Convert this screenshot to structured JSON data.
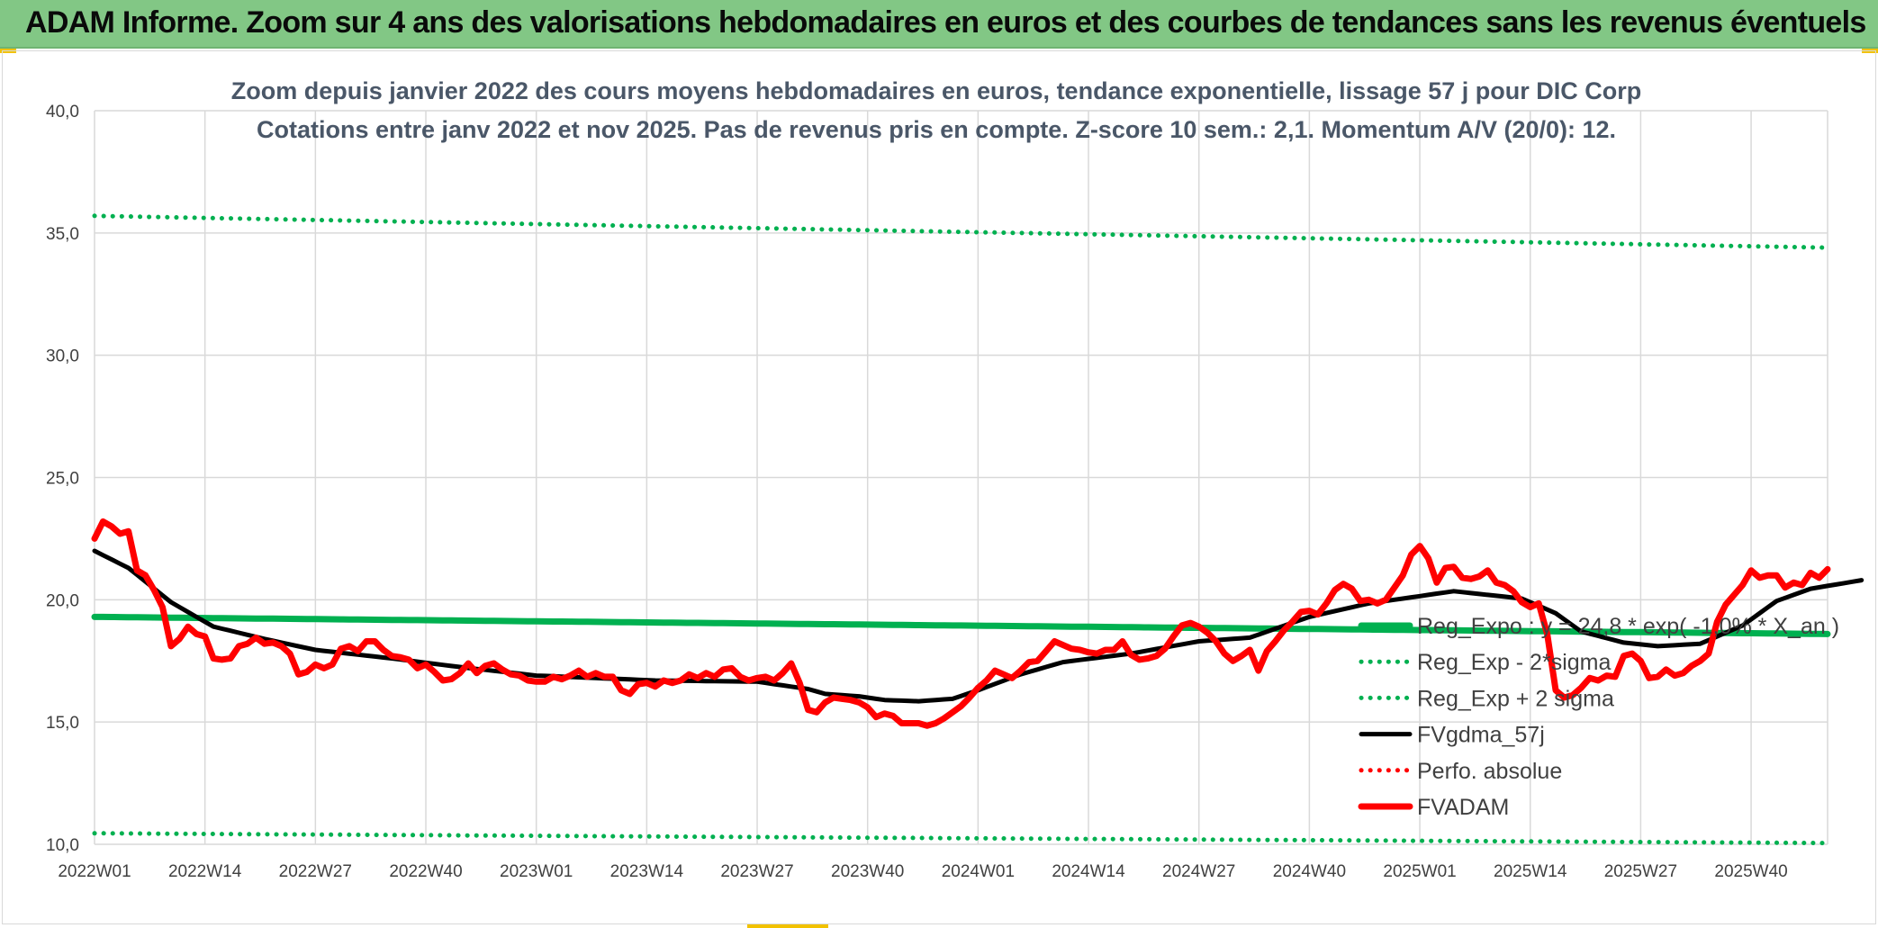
{
  "banner": {
    "title": "ADAM Informe. Zoom sur 4 ans des valorisations hebdomadaires en euros et des courbes de tendances sans les revenus éventuels"
  },
  "chart_data": {
    "type": "line",
    "title": "Zoom depuis janvier 2022 des cours moyens hebdomadaires en euros, tendance exponentielle, lissage 57 j pour DIC Corp",
    "subtitle": "Cotations entre janv 2022 et nov 2025. Pas de revenus pris en compte. Z-score 10 sem.: 2,1. Momentum A/V (20/0): 12.",
    "xlabel": "",
    "ylabel": "",
    "ylim": [
      10,
      40
    ],
    "yticks": [
      "10,0",
      "15,0",
      "20,0",
      "25,0",
      "30,0",
      "35,0",
      "40,0"
    ],
    "n_weeks": 203,
    "x_tick_labels": [
      "2022W01",
      "2022W14",
      "2022W27",
      "2022W40",
      "2023W01",
      "2023W14",
      "2023W27",
      "2023W40",
      "2024W01",
      "2024W14",
      "2024W27",
      "2024W40",
      "2025W01",
      "2025W14",
      "2025W27",
      "2025W40"
    ],
    "grid": true,
    "legend_position": "lower-right inside plot",
    "series": [
      {
        "name": "Reg_Expo : y = 24,8 * exp( -1,0% * X_an )",
        "style": "solid-thick",
        "color": "#00b050",
        "start": 19.3,
        "end": 18.6
      },
      {
        "name": "Reg_Exp - 2*sigma",
        "style": "dotted",
        "color": "#00b050",
        "start": 10.45,
        "end": 10.05
      },
      {
        "name": "Reg_Exp + 2 sigma",
        "style": "dotted",
        "color": "#00b050",
        "start": 35.7,
        "end": 34.4
      },
      {
        "name": "FVgdma_57j",
        "style": "solid",
        "color": "#000000",
        "keypoints": [
          [
            0,
            22.0
          ],
          [
            4,
            21.3
          ],
          [
            9,
            19.9
          ],
          [
            14,
            18.9
          ],
          [
            20,
            18.4
          ],
          [
            26,
            17.95
          ],
          [
            35,
            17.6
          ],
          [
            43,
            17.25
          ],
          [
            52,
            16.9
          ],
          [
            66,
            16.7
          ],
          [
            78,
            16.65
          ],
          [
            84,
            16.35
          ],
          [
            86,
            16.15
          ],
          [
            90,
            16.05
          ],
          [
            93,
            15.9
          ],
          [
            97,
            15.85
          ],
          [
            101,
            15.95
          ],
          [
            104,
            16.3
          ],
          [
            109,
            16.95
          ],
          [
            114,
            17.45
          ],
          [
            122,
            17.8
          ],
          [
            130,
            18.3
          ],
          [
            136,
            18.45
          ],
          [
            143,
            19.3
          ],
          [
            150,
            19.85
          ],
          [
            155,
            20.1
          ],
          [
            160,
            20.35
          ],
          [
            168,
            20.05
          ],
          [
            172,
            19.45
          ],
          [
            175,
            18.7
          ],
          [
            180,
            18.25
          ],
          [
            184,
            18.1
          ],
          [
            189,
            18.2
          ],
          [
            194,
            18.95
          ],
          [
            198,
            19.95
          ],
          [
            202,
            20.45
          ],
          [
            208,
            20.8
          ]
        ]
      },
      {
        "name": "Perfo. absolue",
        "style": "dotted",
        "color": "#ff0000",
        "values": []
      },
      {
        "name": "FVADAM",
        "style": "solid-thick",
        "color": "#ff0000",
        "keypoints": [
          [
            0,
            22.5
          ],
          [
            1,
            23.2
          ],
          [
            2,
            23.0
          ],
          [
            3,
            22.7
          ],
          [
            4,
            22.8
          ],
          [
            5,
            21.2
          ],
          [
            6,
            21.0
          ],
          [
            7,
            20.4
          ],
          [
            8,
            19.7
          ],
          [
            9,
            18.1
          ],
          [
            10,
            18.4
          ],
          [
            11,
            18.9
          ],
          [
            12,
            18.6
          ],
          [
            13,
            18.5
          ],
          [
            14,
            17.6
          ],
          [
            15,
            17.55
          ],
          [
            16,
            17.6
          ],
          [
            17,
            18.1
          ],
          [
            18,
            18.2
          ],
          [
            19,
            18.45
          ],
          [
            20,
            18.2
          ],
          [
            21,
            18.25
          ],
          [
            22,
            18.1
          ],
          [
            23,
            17.8
          ],
          [
            24,
            16.95
          ],
          [
            25,
            17.05
          ],
          [
            26,
            17.35
          ],
          [
            27,
            17.2
          ],
          [
            28,
            17.35
          ],
          [
            29,
            18.0
          ],
          [
            30,
            18.1
          ],
          [
            31,
            17.9
          ],
          [
            32,
            18.3
          ],
          [
            33,
            18.3
          ],
          [
            34,
            17.95
          ],
          [
            35,
            17.7
          ],
          [
            36,
            17.65
          ],
          [
            37,
            17.55
          ],
          [
            38,
            17.2
          ],
          [
            39,
            17.35
          ],
          [
            40,
            17.05
          ],
          [
            41,
            16.7
          ],
          [
            42,
            16.75
          ],
          [
            43,
            17.0
          ],
          [
            44,
            17.4
          ],
          [
            45,
            17.0
          ],
          [
            46,
            17.3
          ],
          [
            47,
            17.4
          ],
          [
            48,
            17.15
          ],
          [
            49,
            16.95
          ],
          [
            50,
            16.9
          ],
          [
            51,
            16.7
          ],
          [
            52,
            16.65
          ],
          [
            53,
            16.65
          ],
          [
            54,
            16.85
          ],
          [
            55,
            16.75
          ],
          [
            56,
            16.9
          ],
          [
            57,
            17.1
          ],
          [
            58,
            16.85
          ],
          [
            59,
            17.0
          ],
          [
            60,
            16.85
          ],
          [
            61,
            16.85
          ],
          [
            62,
            16.3
          ],
          [
            63,
            16.15
          ],
          [
            64,
            16.55
          ],
          [
            65,
            16.6
          ],
          [
            66,
            16.45
          ],
          [
            67,
            16.7
          ],
          [
            68,
            16.6
          ],
          [
            69,
            16.7
          ],
          [
            70,
            16.95
          ],
          [
            71,
            16.8
          ],
          [
            72,
            17.0
          ],
          [
            73,
            16.85
          ],
          [
            74,
            17.15
          ],
          [
            75,
            17.2
          ],
          [
            76,
            16.85
          ],
          [
            77,
            16.7
          ],
          [
            78,
            16.8
          ],
          [
            79,
            16.85
          ],
          [
            80,
            16.7
          ],
          [
            81,
            17.0
          ],
          [
            82,
            17.4
          ],
          [
            83,
            16.6
          ],
          [
            84,
            15.5
          ],
          [
            85,
            15.4
          ],
          [
            86,
            15.8
          ],
          [
            87,
            16.0
          ],
          [
            88,
            15.95
          ],
          [
            89,
            15.9
          ],
          [
            90,
            15.8
          ],
          [
            91,
            15.6
          ],
          [
            92,
            15.2
          ],
          [
            93,
            15.35
          ],
          [
            94,
            15.25
          ],
          [
            95,
            14.95
          ],
          [
            96,
            14.95
          ],
          [
            97,
            14.95
          ],
          [
            98,
            14.85
          ],
          [
            99,
            14.95
          ],
          [
            100,
            15.15
          ],
          [
            101,
            15.4
          ],
          [
            102,
            15.65
          ],
          [
            103,
            16.0
          ],
          [
            104,
            16.4
          ],
          [
            105,
            16.7
          ],
          [
            106,
            17.1
          ],
          [
            107,
            16.95
          ],
          [
            108,
            16.8
          ],
          [
            109,
            17.1
          ],
          [
            110,
            17.45
          ],
          [
            111,
            17.5
          ],
          [
            112,
            17.9
          ],
          [
            113,
            18.3
          ],
          [
            114,
            18.15
          ],
          [
            115,
            18.0
          ],
          [
            116,
            17.95
          ],
          [
            117,
            17.85
          ],
          [
            118,
            17.8
          ],
          [
            119,
            17.95
          ],
          [
            120,
            17.95
          ],
          [
            121,
            18.3
          ],
          [
            122,
            17.75
          ],
          [
            123,
            17.55
          ],
          [
            124,
            17.6
          ],
          [
            125,
            17.7
          ],
          [
            126,
            18.0
          ],
          [
            127,
            18.5
          ],
          [
            128,
            18.95
          ],
          [
            129,
            19.05
          ],
          [
            130,
            18.9
          ],
          [
            131,
            18.65
          ],
          [
            132,
            18.3
          ],
          [
            133,
            17.8
          ],
          [
            134,
            17.5
          ],
          [
            135,
            17.7
          ],
          [
            136,
            17.95
          ],
          [
            137,
            17.1
          ],
          [
            138,
            17.9
          ],
          [
            139,
            18.3
          ],
          [
            140,
            18.75
          ],
          [
            141,
            19.1
          ],
          [
            142,
            19.5
          ],
          [
            143,
            19.55
          ],
          [
            144,
            19.4
          ],
          [
            145,
            19.85
          ],
          [
            146,
            20.4
          ],
          [
            147,
            20.65
          ],
          [
            148,
            20.45
          ],
          [
            149,
            19.95
          ],
          [
            150,
            20.0
          ],
          [
            151,
            19.85
          ],
          [
            152,
            20.0
          ],
          [
            153,
            20.5
          ],
          [
            154,
            21.0
          ],
          [
            155,
            21.85
          ],
          [
            156,
            22.2
          ],
          [
            157,
            21.7
          ],
          [
            158,
            20.7
          ],
          [
            159,
            21.3
          ],
          [
            160,
            21.35
          ],
          [
            161,
            20.9
          ],
          [
            162,
            20.85
          ],
          [
            163,
            20.95
          ],
          [
            164,
            21.2
          ],
          [
            165,
            20.7
          ],
          [
            166,
            20.6
          ],
          [
            167,
            20.35
          ],
          [
            168,
            19.9
          ],
          [
            169,
            19.7
          ],
          [
            170,
            19.85
          ],
          [
            171,
            18.6
          ],
          [
            172,
            16.3
          ],
          [
            173,
            16.0
          ],
          [
            174,
            16.1
          ],
          [
            175,
            16.4
          ],
          [
            176,
            16.8
          ],
          [
            177,
            16.7
          ],
          [
            178,
            16.9
          ],
          [
            179,
            16.85
          ],
          [
            180,
            17.7
          ],
          [
            181,
            17.8
          ],
          [
            182,
            17.5
          ],
          [
            183,
            16.8
          ],
          [
            184,
            16.85
          ],
          [
            185,
            17.15
          ],
          [
            186,
            16.9
          ],
          [
            187,
            17.0
          ],
          [
            188,
            17.3
          ],
          [
            189,
            17.5
          ],
          [
            190,
            17.8
          ],
          [
            191,
            19.1
          ],
          [
            192,
            19.8
          ],
          [
            193,
            20.2
          ],
          [
            194,
            20.6
          ],
          [
            195,
            21.2
          ],
          [
            196,
            20.9
          ],
          [
            197,
            21.0
          ],
          [
            198,
            21.0
          ],
          [
            199,
            20.5
          ],
          [
            200,
            20.7
          ],
          [
            201,
            20.6
          ],
          [
            202,
            21.1
          ],
          [
            203,
            20.9
          ],
          [
            204,
            21.25
          ]
        ]
      }
    ]
  }
}
